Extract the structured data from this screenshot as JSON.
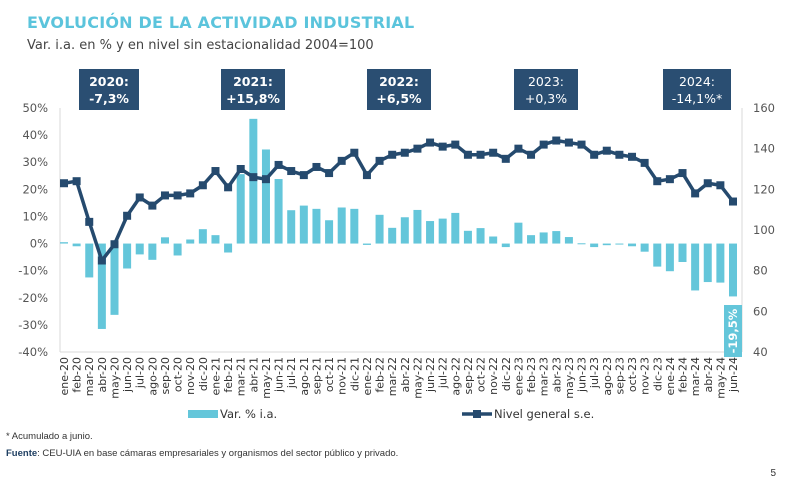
{
  "title": "EVOLUCIÓN DE LA ACTIVIDAD INDUSTRIAL",
  "subtitle": "Var. i.a. en % y en nivel sin estacionalidad 2004=100",
  "note": "* Acumulado a junio.",
  "source_label": "Fuente",
  "source_text": ": CEU-UIA en base cámaras empresariales y organismos del sector público y privado.",
  "page_number": "5",
  "colors": {
    "bars": "#64c6da",
    "line": "#254a6e",
    "annotation_box": "#2a4e72",
    "title": "#5bc4dc"
  },
  "chart_data": {
    "type": "bar+line",
    "categories": [
      "ene-20",
      "feb-20",
      "mar-20",
      "abr-20",
      "may-20",
      "jun-20",
      "jul-20",
      "ago-20",
      "sep-20",
      "oct-20",
      "nov-20",
      "dic-20",
      "ene-21",
      "feb-21",
      "mar-21",
      "abr-21",
      "may-21",
      "jun-21",
      "jul-21",
      "ago-21",
      "sep-21",
      "oct-21",
      "nov-21",
      "dic-21",
      "ene-22",
      "feb-22",
      "mar-22",
      "abr-22",
      "may-22",
      "jun-22",
      "jul-22",
      "ago-22",
      "sep-22",
      "oct-22",
      "nov-22",
      "dic-22",
      "ene-23",
      "feb-23",
      "mar-23",
      "abr-23",
      "may-23",
      "jun-23",
      "jul-23",
      "ago-23",
      "sep-23",
      "oct-23",
      "nov-23",
      "dic-23",
      "ene-24",
      "feb-24",
      "mar-24",
      "abr-24",
      "may-24",
      "jun-24"
    ],
    "series": [
      {
        "name": "Var. % i.a.",
        "type": "bar",
        "axis": "left",
        "values": [
          0.5,
          -1.0,
          -12.5,
          -31.5,
          -26.3,
          -9.2,
          -4.0,
          -6.0,
          2.3,
          -4.4,
          1.5,
          5.3,
          3.1,
          -3.3,
          25.6,
          46.0,
          34.7,
          23.8,
          12.3,
          14.0,
          12.8,
          8.6,
          13.3,
          12.8,
          -0.5,
          10.6,
          5.8,
          9.7,
          12.4,
          8.3,
          9.2,
          11.3,
          4.7,
          5.7,
          2.6,
          -1.3,
          7.7,
          3.1,
          4.1,
          4.6,
          2.4,
          0.1,
          -1.3,
          -0.6,
          -0.2,
          -1.0,
          -3.0,
          -8.5,
          -10.2,
          -6.8,
          -17.3,
          -14.2,
          -14.4,
          -19.5
        ]
      },
      {
        "name": "Nivel general s.e.",
        "type": "line",
        "axis": "right",
        "values": [
          123,
          124,
          104,
          85,
          93,
          107,
          116,
          112,
          117,
          117,
          118,
          122,
          129,
          121,
          130,
          126,
          125,
          132,
          129,
          127,
          131,
          128,
          134,
          138,
          127,
          134,
          137,
          138,
          140,
          143,
          141,
          142,
          137,
          137,
          138,
          135,
          140,
          137,
          142,
          144,
          143,
          142,
          137,
          139,
          137,
          136,
          133,
          124,
          125,
          128,
          118,
          123,
          122,
          114
        ]
      }
    ],
    "left_axis": {
      "ylim": [
        -40,
        50
      ],
      "ticks": [
        "-40%",
        "-30%",
        "-20%",
        "-10%",
        "0%",
        "10%",
        "20%",
        "30%",
        "40%",
        "50%"
      ]
    },
    "right_axis": {
      "ylim": [
        40,
        160
      ],
      "ticks": [
        "40",
        "60",
        "80",
        "100",
        "120",
        "140",
        "160"
      ]
    },
    "data_label": "-19,5%",
    "annotations": [
      {
        "line1": "2020:",
        "line2": "-7,3%",
        "bold": true
      },
      {
        "line1": "2021:",
        "line2": "+15,8%",
        "bold": true
      },
      {
        "line1": "2022:",
        "line2": "+6,5%",
        "bold": true
      },
      {
        "line1": "2023:",
        "line2": "+0,3%",
        "bold": false
      },
      {
        "line1": "2024:",
        "line2": "-14,1%*",
        "bold": false
      }
    ],
    "legend": {
      "position": "bottom",
      "entries": [
        "Var. % i.a.",
        "Nivel general s.e."
      ]
    },
    "grid": false
  }
}
